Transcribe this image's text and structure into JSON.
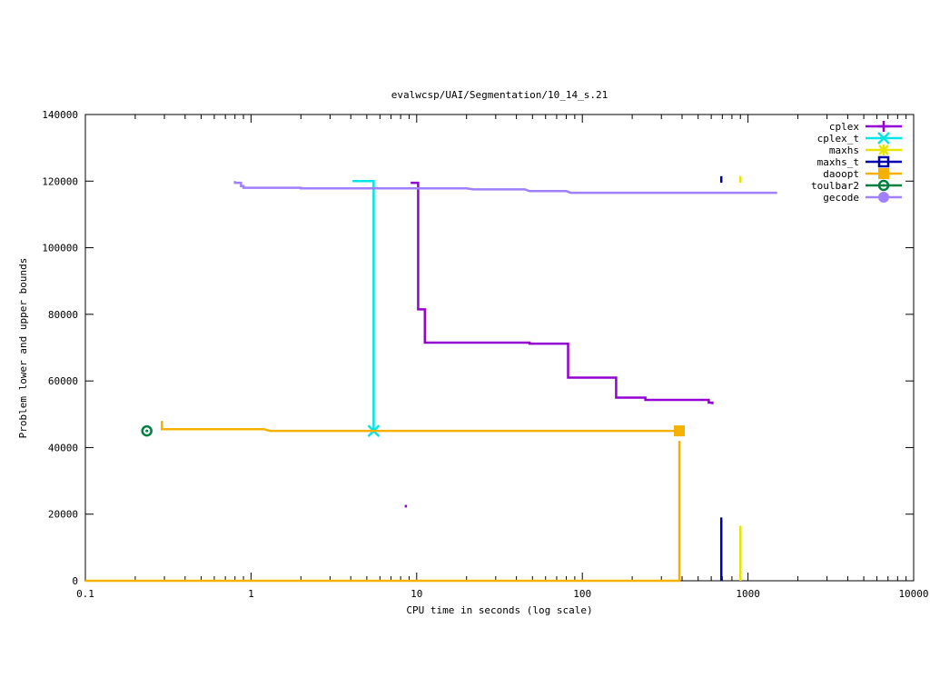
{
  "chart_data": {
    "type": "line",
    "title": "evalwcsp/UAI/Segmentation/10_14_s.21",
    "xlabel": "CPU time in seconds (log scale)",
    "ylabel": "Problem lower and upper bounds",
    "xscale": "log",
    "xlim": [
      0.1,
      10000
    ],
    "ylim": [
      0,
      140000
    ],
    "xticks": [
      {
        "v": 0.1,
        "label": "0.1"
      },
      {
        "v": 1,
        "label": "1"
      },
      {
        "v": 10,
        "label": "10"
      },
      {
        "v": 100,
        "label": "100"
      },
      {
        "v": 1000,
        "label": "1000"
      },
      {
        "v": 10000,
        "label": "10000"
      }
    ],
    "yticks": [
      {
        "v": 0,
        "label": "0"
      },
      {
        "v": 20000,
        "label": "20000"
      },
      {
        "v": 40000,
        "label": "40000"
      },
      {
        "v": 60000,
        "label": "60000"
      },
      {
        "v": 80000,
        "label": "80000"
      },
      {
        "v": 100000,
        "label": "100000"
      },
      {
        "v": 120000,
        "label": "120000"
      },
      {
        "v": 140000,
        "label": "140000"
      }
    ],
    "grid": false,
    "legend": "top-right",
    "series": [
      {
        "name": "cplex",
        "color": "#9400d3",
        "marker": "plus",
        "upper": [
          [
            9.2,
            119500
          ],
          [
            10.2,
            119500
          ],
          [
            10.2,
            81500
          ],
          [
            11.2,
            81500
          ],
          [
            11.2,
            71500
          ],
          [
            48,
            71500
          ],
          [
            48,
            71200
          ],
          [
            82,
            71200
          ],
          [
            82,
            61000
          ],
          [
            160,
            61000
          ],
          [
            160,
            55000
          ],
          [
            240,
            55000
          ],
          [
            240,
            54300
          ],
          [
            580,
            54300
          ],
          [
            580,
            53500
          ],
          [
            610,
            53500
          ],
          [
            610,
            53000
          ]
        ],
        "lower_segments": [
          [
            [
              8.6,
              22000
            ],
            [
              8.6,
              22800
            ]
          ]
        ]
      },
      {
        "name": "cplex_t",
        "color": "#00e5e5",
        "marker": "x",
        "upper": [
          [
            4.1,
            120000
          ],
          [
            5.5,
            120000
          ],
          [
            5.5,
            45000
          ]
        ],
        "markers": [
          [
            5.5,
            45000
          ]
        ]
      },
      {
        "name": "maxhs",
        "color": "#e5e500",
        "marker": "star",
        "lower_segments": [
          [
            [
              900,
              0
            ],
            [
              900,
              16500
            ]
          ],
          [
            [
              900,
              119500
            ],
            [
              900,
              121500
            ]
          ]
        ]
      },
      {
        "name": "maxhs_t",
        "color": "#0000aa",
        "marker": "square-open",
        "lower_segments": [
          [
            [
              690,
              0
            ],
            [
              690,
              19000
            ]
          ],
          [
            [
              690,
              119500
            ],
            [
              690,
              121500
            ]
          ]
        ]
      },
      {
        "name": "daoopt",
        "color": "#f5b000",
        "marker": "square-filled",
        "upper": [
          [
            0.29,
            48000
          ],
          [
            0.29,
            45500
          ],
          [
            1.2,
            45500
          ],
          [
            1.3,
            45000
          ],
          [
            385,
            45000
          ]
        ],
        "lower": [
          [
            0.1,
            0
          ],
          [
            385,
            0
          ],
          [
            385,
            42000
          ]
        ],
        "markers": [
          [
            385,
            45000
          ]
        ]
      },
      {
        "name": "toulbar2",
        "color": "#007f3f",
        "marker": "circle-open",
        "markers": [
          [
            0.235,
            45000
          ]
        ]
      },
      {
        "name": "gecode",
        "color": "#a080ff",
        "marker": "circle-filled",
        "upper": [
          [
            0.8,
            120000
          ],
          [
            0.8,
            119500
          ],
          [
            0.87,
            119500
          ],
          [
            0.87,
            118500
          ],
          [
            0.9,
            118500
          ],
          [
            0.9,
            118000
          ],
          [
            2.0,
            118000
          ],
          [
            2.0,
            117800
          ],
          [
            20,
            117800
          ],
          [
            22,
            117500
          ],
          [
            45,
            117500
          ],
          [
            48,
            117000
          ],
          [
            80,
            117000
          ],
          [
            85,
            116500
          ],
          [
            1500,
            116500
          ]
        ]
      }
    ]
  }
}
